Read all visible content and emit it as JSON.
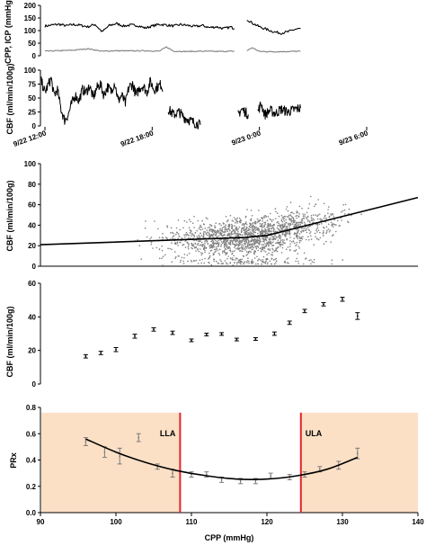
{
  "chart_data": [
    {
      "type": "line",
      "panel": "cpp-icp-timeseries",
      "ylabel": "CPP, ICP (mmHg)",
      "ylim": [
        0,
        200
      ],
      "yticks": [
        0,
        50,
        100,
        150,
        200
      ],
      "grid": false,
      "series": [
        {
          "name": "",
          "color": "#000000",
          "segments": [
            [
              [
                0,
                118
              ],
              [
                0.4,
                122
              ],
              [
                0.8,
                125
              ],
              [
                1.2,
                119
              ],
              [
                1.6,
                124
              ],
              [
                2.0,
                121
              ],
              [
                2.4,
                115
              ],
              [
                2.8,
                125
              ],
              [
                3.2,
                95
              ],
              [
                3.6,
                120
              ],
              [
                4.0,
                128
              ],
              [
                4.4,
                118
              ],
              [
                4.8,
                122
              ],
              [
                5.2,
                120
              ],
              [
                5.6,
                110
              ],
              [
                6.0,
                118
              ],
              [
                6.4,
                125
              ],
              [
                6.8,
                122
              ],
              [
                7.2,
                118
              ],
              [
                7.6,
                124
              ],
              [
                8.0,
                120
              ],
              [
                8.4,
                116
              ],
              [
                8.8,
                120
              ],
              [
                9.2,
                112
              ],
              [
                9.6,
                115
              ],
              [
                10.0,
                108
              ],
              [
                10.4,
                114
              ],
              [
                10.6,
                108
              ]
            ],
            [
              [
                11.3,
                145
              ],
              [
                11.6,
                130
              ],
              [
                12.0,
                115
              ],
              [
                12.4,
                105
              ],
              [
                12.8,
                95
              ],
              [
                13.2,
                90
              ],
              [
                13.6,
                95
              ],
              [
                14.0,
                105
              ],
              [
                14.3,
                108
              ]
            ]
          ]
        },
        {
          "name": "",
          "color": "#808080",
          "segments": [
            [
              [
                0,
                18
              ],
              [
                0.8,
                20
              ],
              [
                1.6,
                22
              ],
              [
                2.4,
                28
              ],
              [
                3.2,
                18
              ],
              [
                4.0,
                20
              ],
              [
                4.8,
                19
              ],
              [
                5.6,
                20
              ],
              [
                6.4,
                18
              ],
              [
                6.8,
                35
              ],
              [
                7.2,
                18
              ],
              [
                8.0,
                17
              ],
              [
                8.8,
                18
              ],
              [
                9.6,
                17
              ],
              [
                10.6,
                18
              ]
            ],
            [
              [
                11.3,
                20
              ],
              [
                11.6,
                32
              ],
              [
                12.0,
                17
              ],
              [
                12.8,
                16
              ],
              [
                13.6,
                17
              ],
              [
                14.3,
                18
              ]
            ]
          ]
        }
      ]
    },
    {
      "type": "line",
      "panel": "cbf-timeseries",
      "ylabel": "CBF (ml/min/100g)",
      "ylim": [
        0,
        100
      ],
      "yticks": [
        0,
        25,
        50,
        75,
        100
      ],
      "xticks": [
        "9/22 12:00",
        "9/22 18:00",
        "9/23 0:00",
        "9/23 6:00"
      ],
      "xtick_hours": [
        0,
        6,
        12,
        18
      ],
      "grid": false,
      "series": [
        {
          "name": "",
          "color": "#000000",
          "segments": [
            [
              [
                -0.2,
                80
              ],
              [
                0.0,
                60
              ],
              [
                0.2,
                75
              ],
              [
                0.35,
                85
              ],
              [
                0.5,
                55
              ],
              [
                0.7,
                65
              ],
              [
                0.9,
                30
              ],
              [
                1.1,
                10
              ],
              [
                1.3,
                20
              ],
              [
                1.5,
                40
              ],
              [
                1.7,
                55
              ],
              [
                1.9,
                45
              ],
              [
                2.1,
                65
              ],
              [
                2.3,
                60
              ],
              [
                2.5,
                72
              ],
              [
                2.7,
                50
              ],
              [
                2.9,
                68
              ],
              [
                3.1,
                75
              ],
              [
                3.3,
                55
              ],
              [
                3.5,
                70
              ],
              [
                3.7,
                62
              ],
              [
                3.9,
                78
              ],
              [
                4.1,
                45
              ],
              [
                4.3,
                55
              ],
              [
                4.5,
                40
              ],
              [
                4.7,
                70
              ],
              [
                4.9,
                75
              ],
              [
                5.1,
                55
              ],
              [
                5.3,
                68
              ],
              [
                5.5,
                72
              ],
              [
                5.7,
                60
              ],
              [
                5.9,
                80
              ],
              [
                6.1,
                65
              ],
              [
                6.3,
                70
              ],
              [
                6.5,
                75
              ],
              [
                6.6,
                62
              ]
            ],
            [
              [
                6.9,
                30
              ],
              [
                7.2,
                20
              ],
              [
                7.5,
                25
              ],
              [
                7.8,
                15
              ],
              [
                8.1,
                10
              ],
              [
                8.4,
                5
              ],
              [
                8.7,
                2
              ]
            ],
            [
              [
                10.8,
                20
              ],
              [
                11.0,
                30
              ],
              [
                11.2,
                25
              ],
              [
                11.4,
                20
              ]
            ],
            [
              [
                11.9,
                25
              ],
              [
                12.1,
                40
              ],
              [
                12.3,
                20
              ],
              [
                12.6,
                28
              ],
              [
                12.9,
                22
              ],
              [
                13.2,
                30
              ],
              [
                13.6,
                25
              ],
              [
                14.0,
                30
              ],
              [
                14.3,
                32
              ]
            ]
          ]
        }
      ]
    },
    {
      "type": "scatter",
      "panel": "cbf-vs-cpp-scatter",
      "ylabel": "CBF (ml/min/100g)",
      "xlim": [
        90,
        140
      ],
      "ylim": [
        0,
        100
      ],
      "yticks": [
        0,
        20,
        40,
        60,
        80,
        100
      ],
      "grid": false,
      "point_color": "#808080",
      "fit_line": [
        [
          90,
          21
        ],
        [
          117,
          28
        ],
        [
          120,
          30
        ],
        [
          140,
          67
        ]
      ]
    },
    {
      "type": "scatter",
      "panel": "binned-cbf-vs-cpp",
      "ylabel": "CBF (ml/min/100g)",
      "xlim": [
        90,
        140
      ],
      "ylim": [
        0,
        60
      ],
      "yticks": [
        0,
        20,
        40,
        60
      ],
      "grid": false,
      "x": [
        96,
        98,
        100,
        102.5,
        105,
        107.5,
        110,
        112,
        114,
        116,
        118.5,
        121,
        123,
        125,
        127.5,
        130,
        132
      ],
      "y": [
        16.5,
        18.5,
        20.5,
        28.5,
        32.5,
        30.5,
        26,
        29.5,
        29.8,
        26.5,
        26.8,
        30,
        36.5,
        43.5,
        47.5,
        50.5,
        40.5
      ],
      "err": [
        1,
        1,
        1.2,
        1.2,
        1,
        1,
        0.8,
        0.8,
        0.8,
        0.8,
        0.8,
        1,
        1,
        1,
        1,
        1.2,
        2
      ]
    },
    {
      "type": "scatter",
      "panel": "prx-vs-cpp",
      "ylabel": "PRx",
      "xlabel": "CPP (mmHg)",
      "xlim": [
        90,
        140
      ],
      "ylim": [
        0,
        0.8
      ],
      "xticks": [
        90,
        100,
        110,
        120,
        130,
        140
      ],
      "yticks": [
        0,
        0.2,
        0.4,
        0.6,
        0.8
      ],
      "ytick_labels": [
        "0.0",
        "0.2",
        "0.4",
        "0.6",
        "0.8"
      ],
      "grid": false,
      "x": [
        96,
        98.5,
        100.5,
        103,
        105.5,
        107.5,
        110,
        112,
        114,
        116.5,
        118.5,
        120.5,
        123,
        125,
        127,
        129.5,
        132
      ],
      "y": [
        0.54,
        0.46,
        0.43,
        0.57,
        0.35,
        0.3,
        0.29,
        0.29,
        0.25,
        0.24,
        0.24,
        0.28,
        0.27,
        0.29,
        0.33,
        0.36,
        0.45
      ],
      "err": [
        0.03,
        0.04,
        0.06,
        0.03,
        0.02,
        0.03,
        0.02,
        0.02,
        0.02,
        0.02,
        0.02,
        0.02,
        0.02,
        0.02,
        0.02,
        0.03,
        0.04
      ],
      "fit_curve": [
        [
          96,
          0.56
        ],
        [
          100,
          0.46
        ],
        [
          104,
          0.38
        ],
        [
          108,
          0.32
        ],
        [
          112,
          0.28
        ],
        [
          116,
          0.255
        ],
        [
          120,
          0.255
        ],
        [
          124,
          0.28
        ],
        [
          128,
          0.33
        ],
        [
          132,
          0.42
        ]
      ],
      "lla": {
        "x": 108.5,
        "label": "LLA"
      },
      "ula": {
        "x": 124.5,
        "label": "ULA"
      },
      "shade_color": "#fbe0c6",
      "limit_color": "#e0262c"
    }
  ]
}
